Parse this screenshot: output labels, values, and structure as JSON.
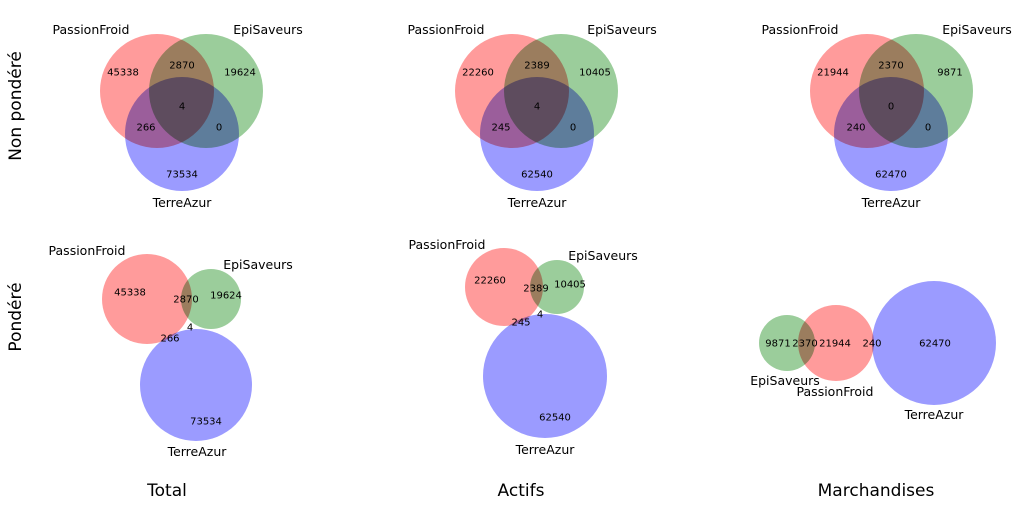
{
  "row_titles": [
    "Non pondéré",
    "Pondéré"
  ],
  "col_titles": [
    "Total",
    "Actifs",
    "Marchandises"
  ],
  "colors": {
    "PassionFroid": "#ff7f7f",
    "EpiSaveurs": "#7fbf7f",
    "TerreAzur": "#7f7fff"
  },
  "chart_data": [
    {
      "type": "venn",
      "row": "Non pondéré",
      "column": "Total",
      "sets": [
        "PassionFroid",
        "EpiSaveurs",
        "TerreAzur"
      ],
      "counts": {
        "PassionFroid_only": 45338,
        "EpiSaveurs_only": 19624,
        "TerreAzur_only": 73534,
        "PassionFroid_EpiSaveurs": 2870,
        "PassionFroid_TerreAzur": 266,
        "EpiSaveurs_TerreAzur": 0,
        "all": 4
      }
    },
    {
      "type": "venn",
      "row": "Non pondéré",
      "column": "Actifs",
      "sets": [
        "PassionFroid",
        "EpiSaveurs",
        "TerreAzur"
      ],
      "counts": {
        "PassionFroid_only": 22260,
        "EpiSaveurs_only": 10405,
        "TerreAzur_only": 62540,
        "PassionFroid_EpiSaveurs": 2389,
        "PassionFroid_TerreAzur": 245,
        "EpiSaveurs_TerreAzur": 0,
        "all": 4
      }
    },
    {
      "type": "venn",
      "row": "Non pondéré",
      "column": "Marchandises",
      "sets": [
        "PassionFroid",
        "EpiSaveurs",
        "TerreAzur"
      ],
      "counts": {
        "PassionFroid_only": 21944,
        "EpiSaveurs_only": 9871,
        "TerreAzur_only": 62470,
        "PassionFroid_EpiSaveurs": 2370,
        "PassionFroid_TerreAzur": 240,
        "EpiSaveurs_TerreAzur": 0,
        "all": 0
      }
    },
    {
      "type": "venn",
      "row": "Pondéré",
      "column": "Total",
      "sets": [
        "PassionFroid",
        "EpiSaveurs",
        "TerreAzur"
      ],
      "counts": {
        "PassionFroid_only": 45338,
        "EpiSaveurs_only": 19624,
        "TerreAzur_only": 73534,
        "PassionFroid_EpiSaveurs": 2870,
        "PassionFroid_TerreAzur": 266,
        "all": 4
      }
    },
    {
      "type": "venn",
      "row": "Pondéré",
      "column": "Actifs",
      "sets": [
        "PassionFroid",
        "EpiSaveurs",
        "TerreAzur"
      ],
      "counts": {
        "PassionFroid_only": 22260,
        "EpiSaveurs_only": 10405,
        "TerreAzur_only": 62540,
        "PassionFroid_EpiSaveurs": 2389,
        "PassionFroid_TerreAzur": 245,
        "all": 4
      }
    },
    {
      "type": "venn",
      "row": "Pondéré",
      "column": "Marchandises",
      "sets": [
        "EpiSaveurs",
        "PassionFroid",
        "TerreAzur"
      ],
      "counts": {
        "EpiSaveurs_only": 9871,
        "PassionFroid_EpiSaveurs": 2370,
        "PassionFroid_only": 21944,
        "PassionFroid_TerreAzur": 240,
        "TerreAzur_only": 62470
      }
    }
  ]
}
